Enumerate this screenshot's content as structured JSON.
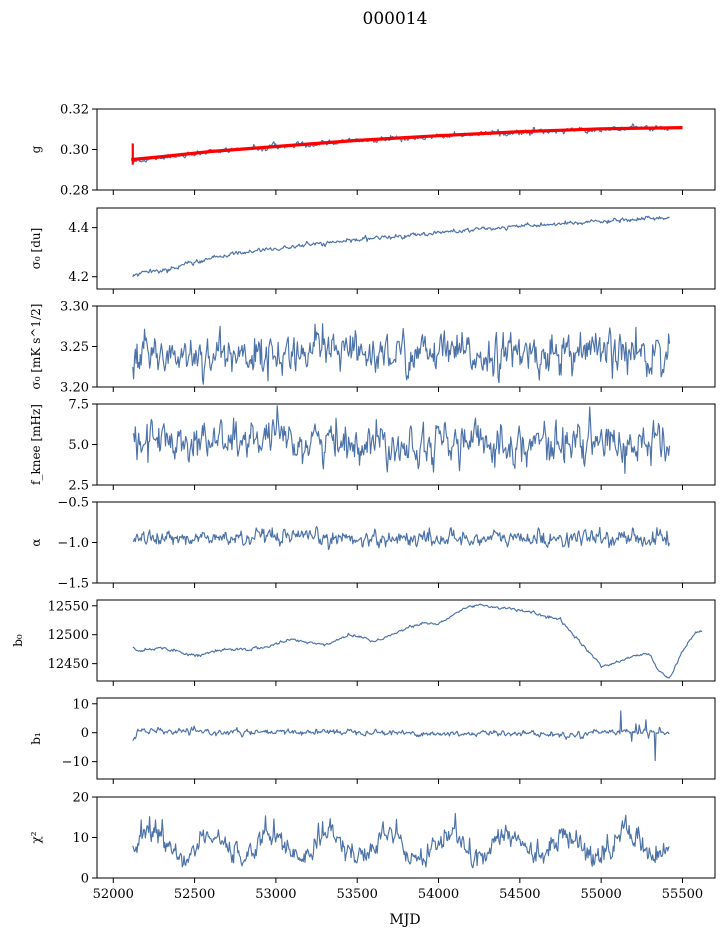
{
  "figure": {
    "title": "000014",
    "xlabel": "MJD"
  },
  "colors": {
    "series": "#4c72a8",
    "fit": "#ff0000"
  },
  "chart_data": {
    "type": "line",
    "x_range": [
      52120,
      55420
    ],
    "xlim": [
      51900,
      55700
    ],
    "x_ticks": [
      52000,
      52500,
      53000,
      53500,
      54000,
      54500,
      55000,
      55500
    ],
    "x_tick_labels": [
      "52000",
      "52500",
      "53000",
      "53500",
      "54000",
      "54500",
      "55000",
      "55500"
    ],
    "panels": [
      {
        "ylabel": "g",
        "ylim": [
          0.28,
          0.32
        ],
        "yticks": [
          0.28,
          0.3,
          0.32
        ],
        "ytick_labels": [
          "0.28",
          "0.30",
          "0.32"
        ],
        "profile": [
          [
            52120,
            0.294
          ],
          [
            52300,
            0.296
          ],
          [
            52600,
            0.299
          ],
          [
            53000,
            0.3015
          ],
          [
            53500,
            0.3045
          ],
          [
            54000,
            0.3065
          ],
          [
            54500,
            0.3085
          ],
          [
            55000,
            0.31
          ],
          [
            55420,
            0.311
          ]
        ],
        "noise": 0.0006,
        "fit_line": [
          [
            52110,
            0.295
          ],
          [
            52300,
            0.2965
          ],
          [
            52600,
            0.299
          ],
          [
            53000,
            0.3015
          ],
          [
            53500,
            0.3045
          ],
          [
            54000,
            0.3068
          ],
          [
            54500,
            0.3088
          ],
          [
            55000,
            0.3102
          ],
          [
            55500,
            0.3108
          ]
        ]
      },
      {
        "ylabel": "σ₀ [du]",
        "ylim": [
          4.15,
          4.48
        ],
        "yticks": [
          4.2,
          4.4
        ],
        "ytick_labels": [
          "4.2",
          "4.4"
        ],
        "profile": [
          [
            52120,
            4.205
          ],
          [
            52400,
            4.24
          ],
          [
            52700,
            4.29
          ],
          [
            53000,
            4.315
          ],
          [
            53500,
            4.35
          ],
          [
            54000,
            4.38
          ],
          [
            54500,
            4.405
          ],
          [
            55000,
            4.425
          ],
          [
            55420,
            4.44
          ]
        ],
        "noise": 0.004
      },
      {
        "ylabel": "σ₀ [mK s^1/2]",
        "ylim": [
          3.2,
          3.3
        ],
        "yticks": [
          3.2,
          3.25,
          3.3
        ],
        "ytick_labels": [
          "3.20",
          "3.25",
          "3.30"
        ],
        "profile": [
          [
            52120,
            3.24
          ],
          [
            55420,
            3.24
          ]
        ],
        "noise": 0.011
      },
      {
        "ylabel": "f_knee [mHz]",
        "ylim": [
          2.5,
          7.5
        ],
        "yticks": [
          2.5,
          5.0,
          7.5
        ],
        "ytick_labels": [
          "2.5",
          "5.0",
          "7.5"
        ],
        "profile": [
          [
            52120,
            5.3
          ],
          [
            55420,
            5.0
          ]
        ],
        "noise": 0.55
      },
      {
        "ylabel": "α",
        "ylim": [
          -1.5,
          -0.5
        ],
        "yticks": [
          -1.5,
          -1.0,
          -0.5
        ],
        "ytick_labels": [
          "−1.5",
          "−1.0",
          "−0.5"
        ],
        "profile": [
          [
            52120,
            -0.95
          ],
          [
            55420,
            -0.95
          ]
        ],
        "noise": 0.045
      },
      {
        "ylabel": "b₀",
        "ylim": [
          12420,
          12560
        ],
        "yticks": [
          12450,
          12500,
          12550
        ],
        "ytick_labels": [
          "12450",
          "12500",
          "12550"
        ],
        "profile": [
          [
            52120,
            12478
          ],
          [
            52150,
            12472
          ],
          [
            52300,
            12478
          ],
          [
            52500,
            12464
          ],
          [
            52700,
            12474
          ],
          [
            52900,
            12476
          ],
          [
            53100,
            12492
          ],
          [
            53300,
            12482
          ],
          [
            53450,
            12500
          ],
          [
            53550,
            12495
          ],
          [
            53600,
            12488
          ],
          [
            53800,
            12510
          ],
          [
            53900,
            12520
          ],
          [
            54000,
            12518
          ],
          [
            54150,
            12545
          ],
          [
            54250,
            12552
          ],
          [
            54350,
            12548
          ],
          [
            54550,
            12540
          ],
          [
            54750,
            12525
          ],
          [
            54900,
            12478
          ],
          [
            55000,
            12446
          ],
          [
            55100,
            12452
          ],
          [
            55200,
            12464
          ],
          [
            55300,
            12466
          ],
          [
            55350,
            12440
          ],
          [
            55420,
            12425
          ],
          [
            55500,
            12470
          ],
          [
            55580,
            12506
          ],
          [
            55620,
            12506
          ]
        ],
        "noise": 1.2
      },
      {
        "ylabel": "b₁",
        "ylim": [
          -16,
          12
        ],
        "yticks": [
          -10,
          0,
          10
        ],
        "ytick_labels": [
          "−10",
          "0",
          "10"
        ],
        "profile": [
          [
            52120,
            -3
          ],
          [
            52150,
            0.5
          ],
          [
            52900,
            0
          ],
          [
            53500,
            0.5
          ],
          [
            54000,
            -0.5
          ],
          [
            54500,
            0
          ],
          [
            54800,
            -1
          ],
          [
            55000,
            0.5
          ],
          [
            55420,
            0
          ]
        ],
        "noise": 0.45
      },
      {
        "ylabel": "χ²",
        "ylim": [
          0,
          20
        ],
        "yticks": [
          0,
          10,
          20
        ],
        "ytick_labels": [
          "0",
          "10",
          "20"
        ],
        "profile": [
          [
            52120,
            8
          ],
          [
            55420,
            8
          ]
        ],
        "noise": 1.2,
        "period": 365
      }
    ]
  }
}
